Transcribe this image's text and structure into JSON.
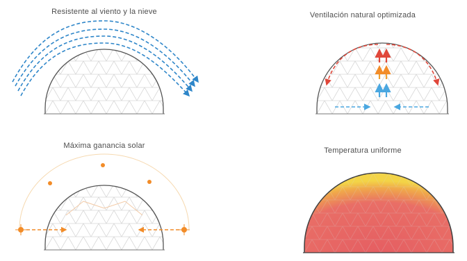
{
  "panels": [
    {
      "id": "wind",
      "title": "Resistente al viento y la nieve"
    },
    {
      "id": "ventilation",
      "title": "Ventilación natural optimizada"
    },
    {
      "id": "solar",
      "title": "Máxima ganancia solar"
    },
    {
      "id": "temperature",
      "title": "Temperatura uniforme"
    }
  ],
  "colors": {
    "dome_outline": "#555555",
    "lattice": "#d2d2d2",
    "wind": "#2e86c9",
    "vent_hot": "#e0473a",
    "vent_warm": "#f0a030",
    "vent_cool": "#4aa7e0",
    "sun": "#f28c28",
    "sun_arc": "#f6d9b0",
    "temp_core": "#e86a6a",
    "temp_edge": "#f4d23f"
  },
  "icons": {
    "sun": "sun-icon",
    "arrow": "arrow-icon"
  }
}
